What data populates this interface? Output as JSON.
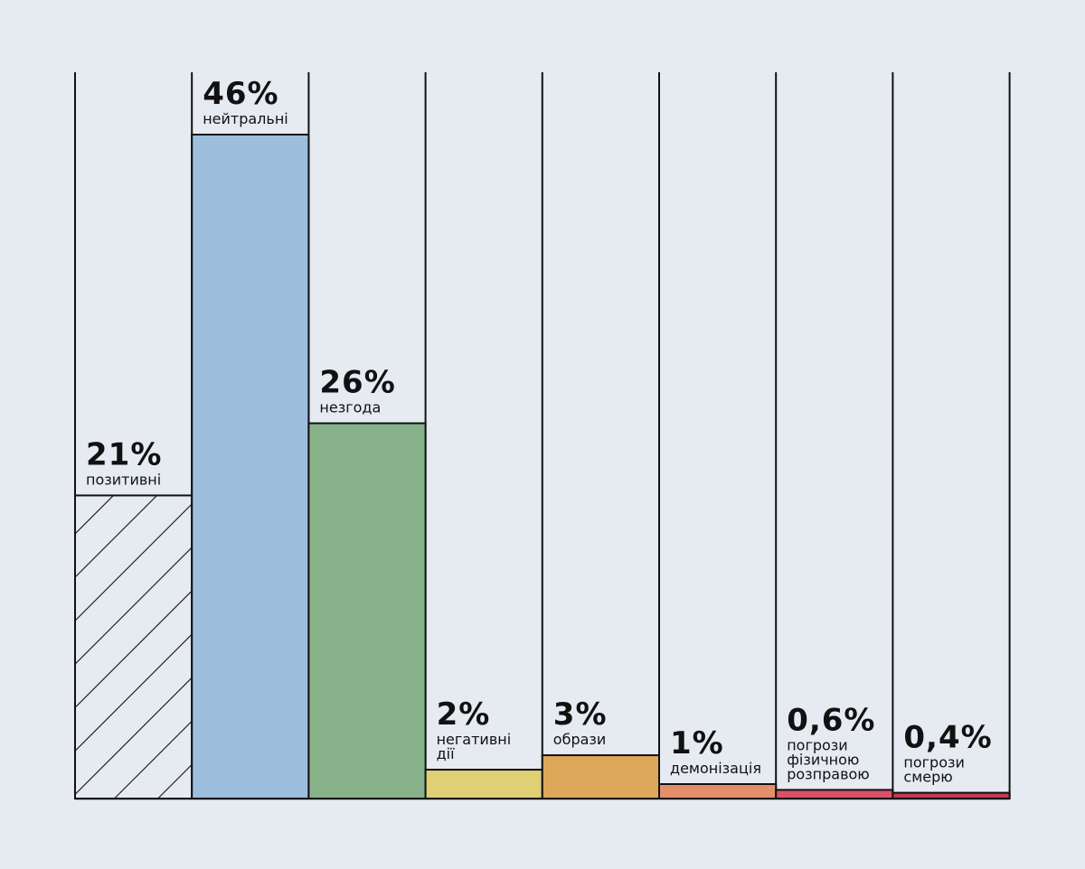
{
  "chart_data": {
    "type": "bar",
    "title": "",
    "xlabel": "",
    "ylabel": "",
    "ylim": [
      0,
      46
    ],
    "grid": false,
    "legend": "none",
    "categories": [
      [
        "позитивні"
      ],
      [
        "нейтральні"
      ],
      [
        "незгода"
      ],
      [
        "негативні",
        "дії"
      ],
      [
        "образи"
      ],
      [
        "демонізація"
      ],
      [
        "погрози",
        "фізичною",
        "розправою"
      ],
      [
        "погрози",
        "смерю"
      ]
    ],
    "values": [
      21,
      46,
      26,
      2,
      3,
      1,
      0.6,
      0.4
    ],
    "value_labels": [
      "21%",
      "46%",
      "26%",
      "2%",
      "3%",
      "1%",
      "0,6%",
      "0,4%"
    ],
    "colors": [
      "hatched",
      "#9dbedd",
      "#88b28a",
      "#dfcf75",
      "#dea85a",
      "#e58f6a",
      "#d9506a",
      "#c33a55"
    ],
    "background": "#e6eaf1",
    "stroke_color": "#111111"
  }
}
